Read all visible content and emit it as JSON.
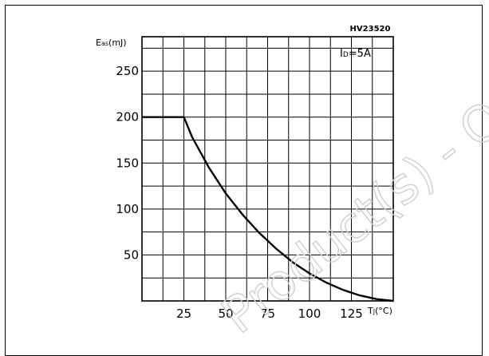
{
  "chart_data": {
    "type": "line",
    "reference": "HV23520",
    "condition": "ID=5A",
    "condition_main": "I",
    "condition_sub": "D",
    "condition_rest": "=5A",
    "ylabel_main": "E",
    "ylabel_sub": "as",
    "ylabel_unit": "(mJ)",
    "xlabel_main": "T",
    "xlabel_sub": "J",
    "xlabel_unit": "(°C)",
    "xlim": [
      0,
      150
    ],
    "ylim": [
      0,
      287.5
    ],
    "x_ticks": [
      25,
      50,
      75,
      100,
      125
    ],
    "y_ticks": [
      50,
      100,
      150,
      200,
      250
    ],
    "grid": true,
    "series": [
      {
        "x": [
          0,
          25,
          30,
          40,
          50,
          60,
          70,
          80,
          90,
          100,
          110,
          120,
          130,
          140,
          150
        ],
        "values": [
          200,
          200,
          178,
          145,
          117,
          94,
          74,
          57,
          42,
          30,
          20,
          12,
          6,
          2,
          0
        ]
      }
    ]
  },
  "watermark": "Product(s) - O",
  "colors": {
    "line": "#000000",
    "grid": "#000000",
    "watermark": "#cfcfcf"
  }
}
